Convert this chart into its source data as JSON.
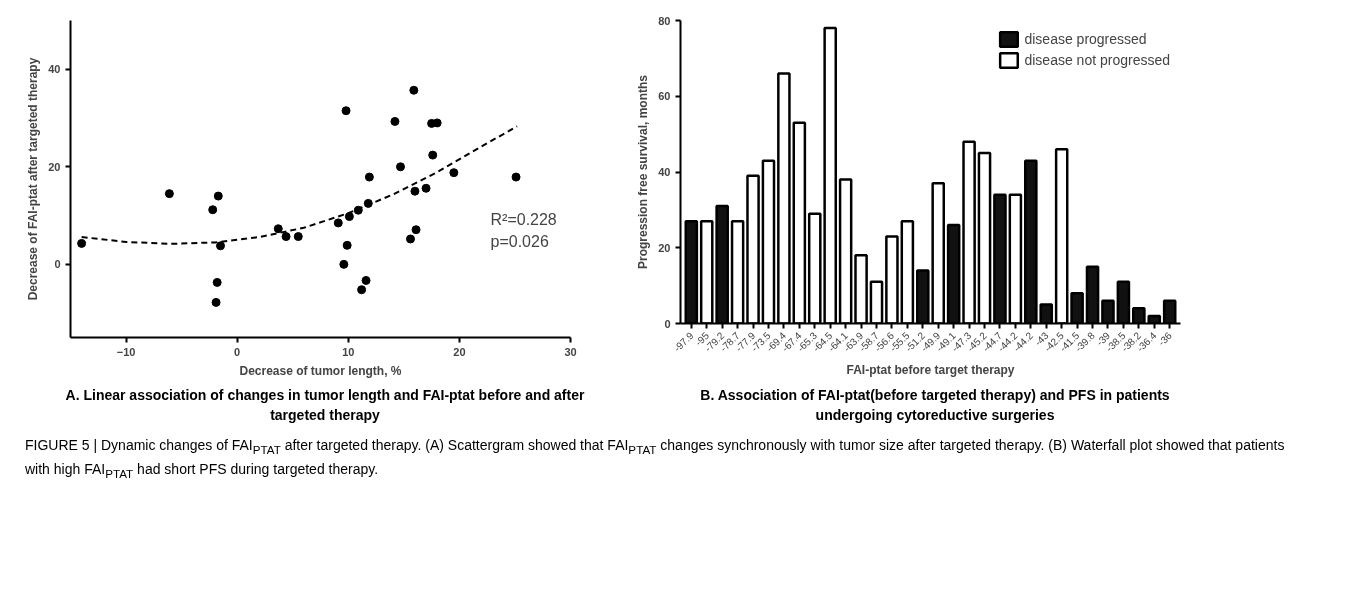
{
  "chart_data": [
    {
      "type": "scatter",
      "title": "A. Linear association of changes in tumor length and FAI-ptat before and after targeted therapy",
      "xlabel": "Decrease of tumor length, %",
      "ylabel": "Decrease of FAI-ptat after targeted therapy",
      "xlim": [
        -15,
        30
      ],
      "ylim": [
        -15,
        50
      ],
      "xticks": [
        -10,
        0,
        10,
        20,
        30
      ],
      "yticks": [
        0,
        20,
        40
      ],
      "grid": false,
      "annotations": [
        "R²=0.228",
        "p=0.026"
      ],
      "series": [
        {
          "type": "scatter",
          "marker": "circle",
          "color": "#000000",
          "x": [
            -14.0,
            -6.1,
            -2.2,
            -1.7,
            -1.5,
            -1.8,
            -1.9,
            3.7,
            4.4,
            5.5,
            9.1,
            9.8,
            10.1,
            9.9,
            9.6,
            10.9,
            11.6,
            11.2,
            11.8,
            11.9,
            14.2,
            14.7,
            15.9,
            16.0,
            16.1,
            15.6,
            17.0,
            17.5,
            18.0,
            17.6,
            19.5,
            25.1
          ],
          "values": [
            4.3,
            14.5,
            11.2,
            14.0,
            3.8,
            -3.7,
            -7.8,
            7.3,
            5.7,
            5.7,
            8.5,
            31.5,
            9.8,
            3.9,
            0,
            11.1,
            -3.3,
            -5.2,
            12.5,
            17.9,
            29.3,
            20.0,
            35.7,
            15.0,
            7.1,
            5.2,
            15.6,
            28.9,
            29.0,
            22.4,
            18.8,
            17.9
          ]
        },
        {
          "type": "line",
          "line_style": "dashed",
          "color": "#000000",
          "x": [
            -14,
            -10,
            -6,
            -2,
            2,
            6,
            10,
            14,
            18,
            22,
            25.2
          ],
          "values": [
            5.6,
            4.6,
            4.2,
            4.5,
            5.6,
            7.5,
            10.5,
            14.3,
            18.9,
            24.2,
            28.3
          ]
        }
      ]
    },
    {
      "type": "bar",
      "title": "B. Association of FAI-ptat(before targeted therapy) and PFS in patients undergoing cytoreductive surgeries",
      "xlabel": "FAI-ptat before target therapy",
      "ylabel": "Progression free survival, months",
      "ylim": [
        0,
        80
      ],
      "yticks": [
        0,
        20,
        40,
        60,
        80
      ],
      "grid": false,
      "legend": "top right",
      "annotations": [
        "FIGURE 5 | Dynamic changes of FAI$_{PTAT}$ after targeted therapy. (A) Scattergram showed that FAI$_{PTAT}$ changes synchronously with tumor size after targeted therapy. (B) Waterfall plot showed that patients with high FAI$_{PTAT}$ had short PFS during targeted therapy."
      ],
      "categories": [
        "-97.9",
        "-95",
        "-79.2",
        "-78.7",
        "-77.9",
        "-73.5",
        "-69.4",
        "-67.4",
        "-65.3",
        "-64.5",
        "-64.1",
        "-63.9",
        "-58.7",
        "-56.6",
        "-55.5",
        "-51.2",
        "-49.9",
        "-49.1",
        "-47.3",
        "-45.2",
        "-44.7",
        "-44.2",
        "-44.2",
        "-43",
        "-42.5",
        "-41.5",
        "-39.8",
        "-39",
        "-38.5",
        "-38.2",
        "-36.4",
        "-36"
      ],
      "series": [
        {
          "name": "disease progressed",
          "color": "#111111",
          "values": [
            27,
            null,
            31,
            null,
            null,
            null,
            null,
            null,
            null,
            null,
            null,
            null,
            null,
            null,
            null,
            14,
            null,
            26,
            null,
            null,
            34,
            null,
            43,
            5,
            null,
            8,
            15,
            6,
            11,
            4,
            2,
            6
          ]
        },
        {
          "name": "disease not progressed",
          "color": "#ffffff",
          "values": [
            null,
            27,
            null,
            27,
            39,
            43,
            66,
            53,
            29,
            78,
            38,
            18,
            11,
            23,
            27,
            null,
            37,
            null,
            48,
            45,
            null,
            34,
            null,
            null,
            46,
            null,
            null,
            null,
            null,
            null,
            null,
            null
          ]
        }
      ]
    }
  ]
}
